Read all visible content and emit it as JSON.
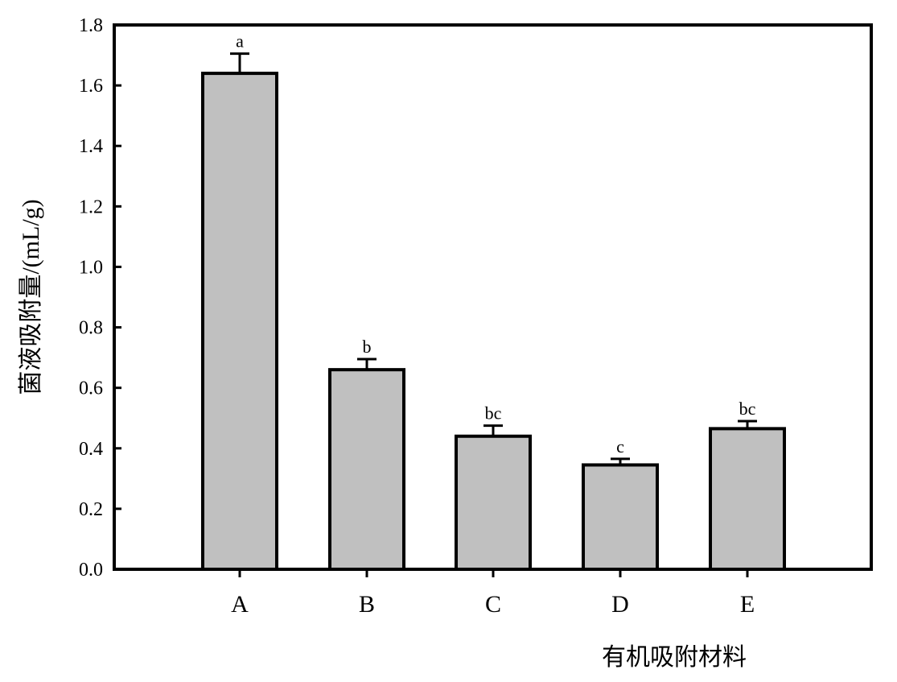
{
  "chart_data": {
    "type": "bar",
    "title": "",
    "xlabel": "有机吸附材料",
    "ylabel": "菌液吸附量/(mL/g)",
    "ylim": [
      0,
      1.8
    ],
    "yticks": [
      "0.0",
      "0.2",
      "0.4",
      "0.6",
      "0.8",
      "1.0",
      "1.2",
      "1.4",
      "1.6",
      "1.8"
    ],
    "categories": [
      "A",
      "B",
      "C",
      "D",
      "E"
    ],
    "values": [
      1.64,
      0.66,
      0.44,
      0.345,
      0.465
    ],
    "errors": [
      0.065,
      0.035,
      0.035,
      0.02,
      0.025
    ],
    "significance": [
      "a",
      "b",
      "bc",
      "c",
      "bc"
    ],
    "bar_color": "#c0c0c0",
    "edge_color": "#000000",
    "grid": false,
    "legend": "none"
  }
}
